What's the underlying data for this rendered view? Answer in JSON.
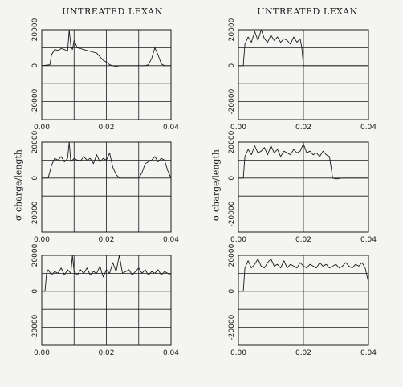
{
  "titles": {
    "left": "UNTREATED LEXAN",
    "right": "UNTREATED LEXAN"
  },
  "ylabels": {
    "left": "σ charge/length",
    "right": "σ charge/length"
  },
  "colors": {
    "line": "#1a1a1a",
    "grid": "#1a1a1a",
    "background": "#f4f4f2"
  },
  "chart_data": [
    {
      "type": "line",
      "title": "UNTREATED LEXAN",
      "xlim": [
        0,
        0.04
      ],
      "ylim": [
        -30000,
        20000
      ],
      "xticks": [
        "0.00",
        "0.02",
        "0.04"
      ],
      "yticks": [
        "20000",
        "0",
        "-20000"
      ],
      "x": [
        0,
        0.0025,
        0.003,
        0.004,
        0.005,
        0.006,
        0.007,
        0.008,
        0.0085,
        0.009,
        0.0095,
        0.01,
        0.011,
        0.012,
        0.013,
        0.014,
        0.015,
        0.016,
        0.017,
        0.018,
        0.019,
        0.02,
        0.021,
        0.022,
        0.023,
        0.024,
        0.026,
        0.028,
        0.03,
        0.032,
        0.033,
        0.034,
        0.035,
        0.036,
        0.037,
        0.038,
        0.04
      ],
      "y": [
        0,
        500,
        6000,
        9000,
        8500,
        9500,
        9000,
        8000,
        20000,
        11000,
        9000,
        14000,
        10000,
        9500,
        9000,
        8500,
        8000,
        7500,
        7000,
        5000,
        3000,
        2000,
        500,
        0,
        -500,
        0,
        0,
        0,
        0,
        0,
        500,
        4000,
        10000,
        6000,
        1000,
        0,
        0
      ]
    },
    {
      "type": "line",
      "title": "UNTREATED LEXAN",
      "xlim": [
        0,
        0.04
      ],
      "ylim": [
        -30000,
        20000
      ],
      "xticks": [
        "0.00",
        "0.02",
        "0.04"
      ],
      "yticks": [
        "20000",
        "0",
        "-20000"
      ],
      "x": [
        0,
        0.0015,
        0.002,
        0.003,
        0.004,
        0.005,
        0.006,
        0.007,
        0.008,
        0.009,
        0.01,
        0.011,
        0.012,
        0.013,
        0.014,
        0.015,
        0.016,
        0.017,
        0.018,
        0.019,
        0.0195,
        0.02,
        0.022,
        0.025,
        0.03,
        0.035,
        0.04
      ],
      "y": [
        0,
        0,
        12000,
        16000,
        13000,
        19000,
        14000,
        20000,
        15000,
        13000,
        17000,
        14000,
        16000,
        13000,
        15000,
        14000,
        12000,
        16000,
        13000,
        15000,
        10000,
        0,
        0,
        0,
        0,
        0,
        0
      ]
    },
    {
      "type": "line",
      "title": "",
      "xlim": [
        0,
        0.04
      ],
      "ylim": [
        -30000,
        20000
      ],
      "xticks": [
        "0.00",
        "0.02",
        "0.04"
      ],
      "yticks": [
        "20000",
        "0",
        "-20000"
      ],
      "x": [
        0,
        0.002,
        0.003,
        0.004,
        0.005,
        0.006,
        0.007,
        0.008,
        0.0085,
        0.009,
        0.01,
        0.011,
        0.012,
        0.013,
        0.014,
        0.015,
        0.016,
        0.017,
        0.018,
        0.019,
        0.02,
        0.021,
        0.022,
        0.023,
        0.024,
        0.026,
        0.028,
        0.03,
        0.031,
        0.032,
        0.033,
        0.034,
        0.035,
        0.036,
        0.037,
        0.038,
        0.039,
        0.04
      ],
      "y": [
        0,
        0,
        7000,
        11000,
        10000,
        12000,
        9000,
        11000,
        20000,
        9000,
        11000,
        10000,
        9500,
        12000,
        10000,
        11000,
        8000,
        13000,
        9000,
        11000,
        10000,
        14000,
        6000,
        2000,
        0,
        0,
        0,
        0,
        3000,
        8000,
        9000,
        10000,
        12000,
        9000,
        11000,
        10000,
        4000,
        0
      ]
    },
    {
      "type": "line",
      "title": "",
      "xlim": [
        0,
        0.04
      ],
      "ylim": [
        -30000,
        20000
      ],
      "xticks": [
        "0.00",
        "0.02",
        "0.04"
      ],
      "yticks": [
        "20000",
        "0",
        "-20000"
      ],
      "x": [
        0,
        0.0015,
        0.002,
        0.003,
        0.004,
        0.005,
        0.006,
        0.007,
        0.008,
        0.009,
        0.01,
        0.011,
        0.012,
        0.013,
        0.014,
        0.015,
        0.016,
        0.017,
        0.018,
        0.019,
        0.02,
        0.021,
        0.022,
        0.023,
        0.024,
        0.025,
        0.026,
        0.027,
        0.028,
        0.0285,
        0.029,
        0.03,
        0.032,
        0.035,
        0.04
      ],
      "y": [
        0,
        0,
        12000,
        16000,
        13000,
        18000,
        14000,
        15000,
        17000,
        13000,
        18000,
        14000,
        16000,
        12000,
        15000,
        14000,
        13000,
        16000,
        14000,
        15000,
        19000,
        14000,
        15000,
        13000,
        14000,
        12000,
        15000,
        13000,
        12000,
        6000,
        0,
        -500,
        0,
        0,
        0
      ]
    },
    {
      "type": "line",
      "title": "",
      "xlim": [
        0,
        0.04
      ],
      "ylim": [
        -30000,
        20000
      ],
      "xticks": [
        "0.00",
        "0.02",
        "0.04"
      ],
      "yticks": [
        "20000",
        "0",
        "-20000"
      ],
      "x": [
        0,
        0.001,
        0.0015,
        0.002,
        0.003,
        0.004,
        0.005,
        0.006,
        0.007,
        0.008,
        0.009,
        0.0095,
        0.01,
        0.011,
        0.012,
        0.013,
        0.014,
        0.015,
        0.016,
        0.017,
        0.018,
        0.019,
        0.02,
        0.021,
        0.022,
        0.023,
        0.024,
        0.025,
        0.026,
        0.027,
        0.028,
        0.029,
        0.03,
        0.031,
        0.032,
        0.033,
        0.034,
        0.035,
        0.036,
        0.037,
        0.038,
        0.039,
        0.04
      ],
      "y": [
        0,
        0,
        10000,
        12000,
        9000,
        11000,
        10000,
        13000,
        9000,
        12000,
        10000,
        20000,
        11000,
        9000,
        12000,
        10000,
        13000,
        9000,
        11000,
        10000,
        14000,
        8000,
        12000,
        10000,
        16000,
        11000,
        20000,
        10000,
        11000,
        12000,
        9000,
        11000,
        13000,
        10000,
        12000,
        9000,
        11000,
        10000,
        12000,
        9000,
        11000,
        10000,
        9000
      ]
    },
    {
      "type": "line",
      "title": "",
      "xlim": [
        0,
        0.04
      ],
      "ylim": [
        -30000,
        20000
      ],
      "xticks": [
        "0.00",
        "0.02",
        "0.04"
      ],
      "yticks": [
        "20000",
        "0",
        "-20000"
      ],
      "x": [
        0,
        0.0015,
        0.002,
        0.003,
        0.004,
        0.005,
        0.006,
        0.007,
        0.008,
        0.009,
        0.01,
        0.011,
        0.012,
        0.013,
        0.014,
        0.015,
        0.016,
        0.017,
        0.018,
        0.019,
        0.02,
        0.021,
        0.022,
        0.023,
        0.024,
        0.025,
        0.026,
        0.027,
        0.028,
        0.029,
        0.03,
        0.031,
        0.032,
        0.033,
        0.034,
        0.035,
        0.036,
        0.037,
        0.038,
        0.039,
        0.04
      ],
      "y": [
        0,
        0,
        13000,
        17000,
        13000,
        15000,
        18000,
        14000,
        13000,
        16000,
        18000,
        14000,
        15000,
        13000,
        17000,
        13000,
        15000,
        14000,
        13000,
        16000,
        14000,
        13000,
        15000,
        14000,
        13000,
        16000,
        14000,
        15000,
        13000,
        14000,
        15000,
        13000,
        14000,
        16000,
        14000,
        13000,
        15000,
        14000,
        16000,
        13000,
        5000
      ]
    }
  ]
}
